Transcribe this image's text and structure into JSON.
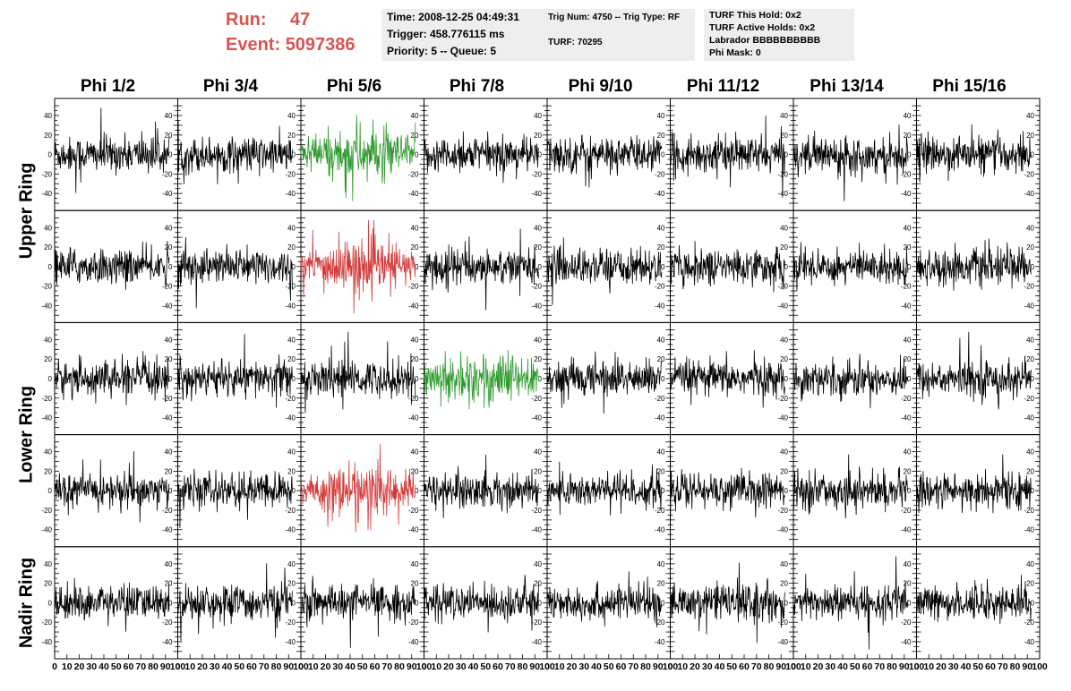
{
  "header": {
    "run_label": "Run:",
    "run_value": "47",
    "event_label": "Event:",
    "event_value": "5097386",
    "time": "Time: 2008-12-25 04:49:31",
    "trigger": "Trigger: 458.776115 ms",
    "priority": "Priority: 5 -- Queue: 5",
    "trig_num": "Trig Num: 4750 -- Trig Type: RF",
    "turf": "TURF: 70295",
    "turf_this_hold": "TURF This Hold: 0x2",
    "turf_active_holds": "TURF Active Holds: 0x2",
    "labrador": "Labrador BBBBBBBBBB",
    "phi_mask": "Phi Mask: 0"
  },
  "columns": [
    "Phi 1/2",
    "Phi 3/4",
    "Phi 5/6",
    "Phi 7/8",
    "Phi 9/10",
    "Phi 11/12",
    "Phi 13/14",
    "Phi 15/16"
  ],
  "rows": [
    {
      "label": "Upper Ring",
      "span": [
        0,
        1
      ]
    },
    {
      "label": "Lower Ring",
      "span": [
        2,
        3
      ]
    },
    {
      "label": "Nadir Ring",
      "span": [
        4,
        4
      ]
    }
  ],
  "colors": {
    "trace": "#000000",
    "green": "#2e9a2e",
    "red": "#d23b3b",
    "header_red": "#d9534f",
    "box_bg": "#eeeeee"
  },
  "chart_data": {
    "type": "line",
    "x_ticks": [
      "0",
      "10",
      "20",
      "30",
      "40",
      "50",
      "60",
      "70",
      "80",
      "90",
      "100"
    ],
    "y_ticks": [
      "40",
      "20",
      "0",
      "-20",
      "-40"
    ],
    "xlim": [
      0,
      100
    ],
    "ylim": [
      -52,
      52
    ],
    "grid": false,
    "highlight": [
      {
        "row": 0,
        "col": 2,
        "color": "green"
      },
      {
        "row": 1,
        "col": 2,
        "color": "red"
      },
      {
        "row": 2,
        "col": 3,
        "color": "green"
      },
      {
        "row": 3,
        "col": 2,
        "color": "red"
      }
    ]
  }
}
